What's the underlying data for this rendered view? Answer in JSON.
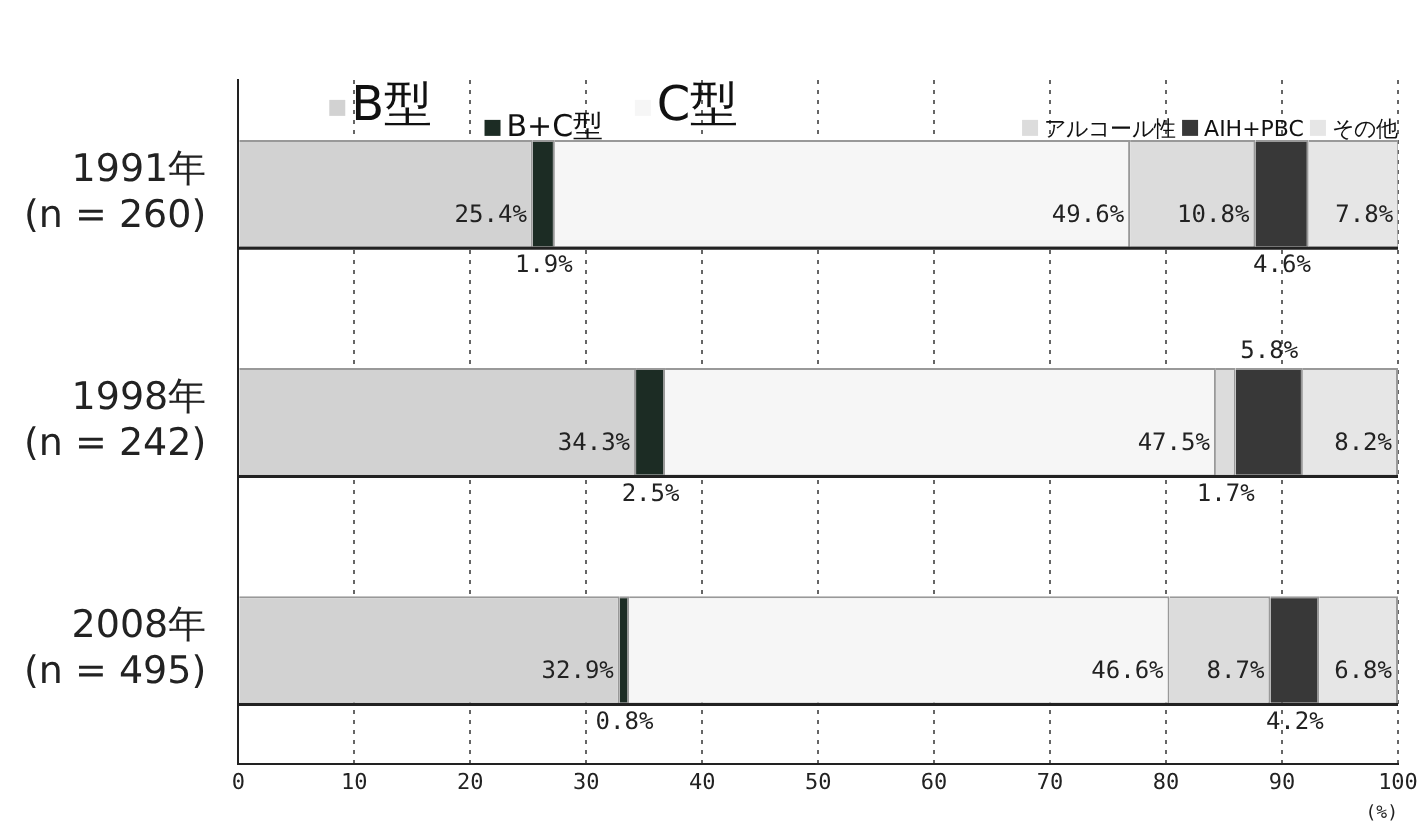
{
  "chart_data": {
    "type": "bar",
    "orientation": "horizontal",
    "stacked": true,
    "categories": [
      "1991年\n(n = 260)",
      "1998年\n(n = 242)",
      "2008年\n(n = 495)"
    ],
    "series": [
      {
        "name": "B型",
        "color": "#d2d2d2",
        "values": [
          25.4,
          34.3,
          32.9
        ],
        "value_labels": [
          "25.4%",
          "34.3%",
          "32.9%"
        ]
      },
      {
        "name": "B+C型",
        "color": "#1c2c24",
        "values": [
          1.9,
          2.5,
          0.8
        ],
        "value_labels": [
          "1.9%",
          "2.5%",
          "0.8%"
        ]
      },
      {
        "name": "C型",
        "color": "#f6f6f6",
        "values": [
          49.6,
          47.5,
          46.6
        ],
        "value_labels": [
          "49.6%",
          "47.5%",
          "46.6%"
        ]
      },
      {
        "name": "アルコール性",
        "color": "#dcdcdc",
        "values": [
          10.8,
          1.7,
          8.7
        ],
        "value_labels": [
          "10.8%",
          "1.7%",
          "8.7%"
        ]
      },
      {
        "name": "AIH+PBC",
        "color": "#383838",
        "values": [
          4.6,
          5.8,
          4.2
        ],
        "value_labels": [
          "4.6%",
          "5.8%",
          "4.2%"
        ]
      },
      {
        "name": "その他",
        "color": "#e6e6e6",
        "values": [
          7.8,
          8.2,
          6.8
        ],
        "value_labels": [
          "7.8%",
          "8.2%",
          "6.8%"
        ]
      }
    ],
    "xlim": [
      0,
      100
    ],
    "xticks": [
      0,
      10,
      20,
      30,
      40,
      50,
      60,
      70,
      80,
      90,
      100
    ],
    "xlabel": "(%)",
    "grid": "x",
    "legend": "top"
  }
}
